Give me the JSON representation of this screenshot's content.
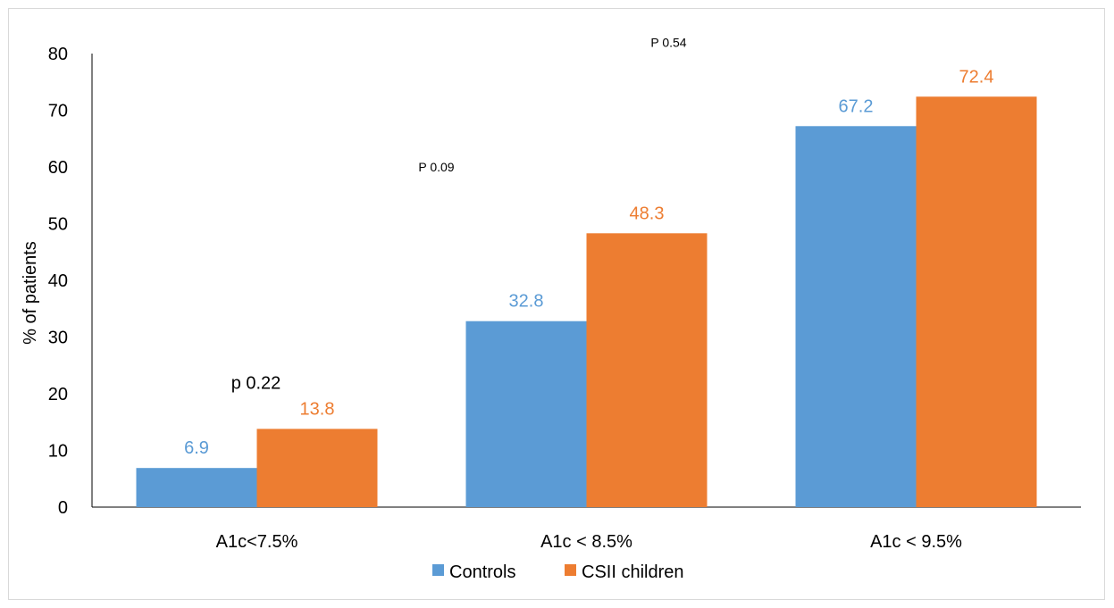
{
  "chart_data": {
    "type": "bar",
    "title": "",
    "xlabel": "",
    "ylabel": "% of patients",
    "ylim": [
      0,
      80
    ],
    "yticks": [
      0,
      10,
      20,
      30,
      40,
      50,
      60,
      70,
      80
    ],
    "categories": [
      "A1c<7.5%",
      "A1c < 8.5%",
      "A1c < 9.5%"
    ],
    "series": [
      {
        "name": "Controls",
        "color": "#5b9bd5",
        "values": [
          6.9,
          32.8,
          67.2
        ],
        "labels": [
          "6.9",
          "32.8",
          "67.2"
        ]
      },
      {
        "name": "CSII children",
        "color": "#ed7d31",
        "values": [
          13.8,
          48.3,
          72.4
        ],
        "labels": [
          "13.8",
          "48.3",
          "72.4"
        ]
      }
    ],
    "annotations": [
      {
        "text": "p 0.22",
        "category_index": 0,
        "y": 22
      },
      {
        "text": "P 0.09",
        "category_index": 1,
        "y": 60
      },
      {
        "text": "P 0.54",
        "category_index": 2,
        "y": 82
      }
    ],
    "legend_position": "bottom",
    "grid": false
  }
}
